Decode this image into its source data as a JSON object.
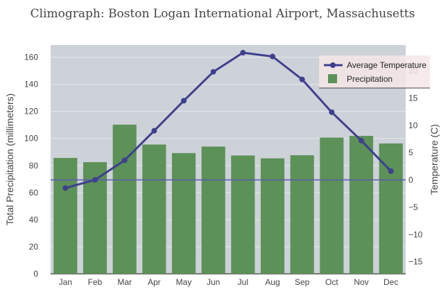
{
  "chart_data": {
    "type": "bar+line",
    "title": "Climograph: Boston Logan International Airport, Massachusetts",
    "categories": [
      "Jan",
      "Feb",
      "Mar",
      "Apr",
      "May",
      "Jun",
      "Jul",
      "Aug",
      "Sep",
      "Oct",
      "Nov",
      "Dec"
    ],
    "series": [
      {
        "name": "Precipitation",
        "type": "bar",
        "axis": "left",
        "values": [
          85.6,
          82.5,
          110.2,
          95.5,
          89.2,
          94.0,
          87.4,
          85.3,
          87.6,
          100.6,
          101.9,
          96.3
        ]
      },
      {
        "name": "Average Temperature",
        "type": "line",
        "axis": "right",
        "values": [
          -1.5,
          0.0,
          3.6,
          9.0,
          14.5,
          19.8,
          23.3,
          22.6,
          18.4,
          12.4,
          7.2,
          1.6
        ]
      }
    ],
    "y_left": {
      "label": "Total Precipitation (millimeters)",
      "range": [
        0,
        169
      ],
      "ticks": [
        0,
        20,
        40,
        60,
        80,
        100,
        120,
        140,
        160
      ]
    },
    "y_right": {
      "label": "Temperature (C)",
      "range": [
        -17.2,
        24.7
      ],
      "ticks": [
        -15,
        -10,
        -5,
        0,
        5,
        10,
        15,
        20
      ]
    },
    "legend_position": "top-right",
    "grid": true,
    "colors": {
      "plot_background": "#cdd1d8",
      "bar": "#5c9157",
      "line": "#3f3f8f",
      "grid": "#e6e8ec",
      "zero_line": "#5a5ab0"
    }
  }
}
